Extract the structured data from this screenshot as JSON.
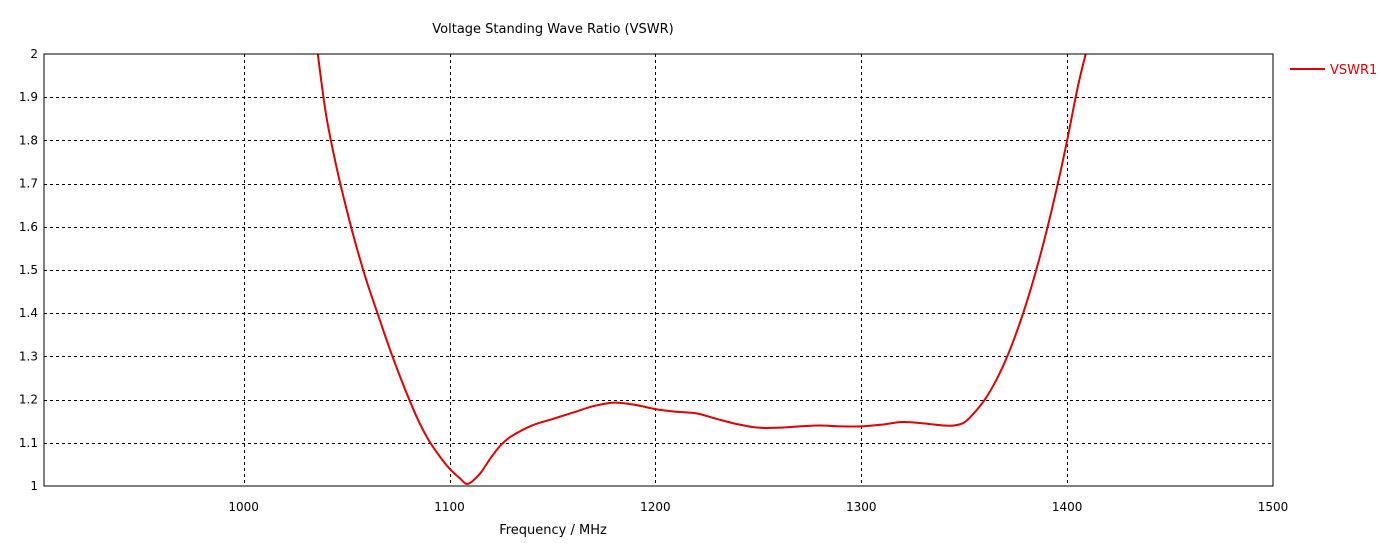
{
  "chart_data": {
    "type": "line",
    "title": "Voltage Standing Wave Ratio (VSWR)",
    "xlabel": "Frequency / MHz",
    "ylabel": "",
    "xlim": [
      903,
      1500
    ],
    "ylim": [
      1,
      2
    ],
    "x_ticks": [
      1000,
      1100,
      1200,
      1300,
      1400,
      1500
    ],
    "y_ticks": [
      1,
      1.1,
      1.2,
      1.3,
      1.4,
      1.5,
      1.6,
      1.7,
      1.8,
      1.9,
      2
    ],
    "grid": true,
    "legend_position": "top-right",
    "series": [
      {
        "name": "VSWR1",
        "color": "#dd0000",
        "x": [
          1036,
          1040,
          1045,
          1050,
          1055,
          1060,
          1065,
          1070,
          1075,
          1080,
          1085,
          1090,
          1095,
          1100,
          1105,
          1109,
          1115,
          1120,
          1125,
          1130,
          1140,
          1150,
          1160,
          1170,
          1180,
          1190,
          1200,
          1210,
          1220,
          1230,
          1240,
          1250,
          1260,
          1270,
          1280,
          1290,
          1300,
          1310,
          1320,
          1330,
          1340,
          1345,
          1350,
          1355,
          1360,
          1365,
          1370,
          1375,
          1380,
          1385,
          1390,
          1395,
          1400,
          1405,
          1409
        ],
        "y": [
          2.0,
          1.86,
          1.74,
          1.64,
          1.55,
          1.47,
          1.4,
          1.33,
          1.265,
          1.205,
          1.15,
          1.105,
          1.07,
          1.04,
          1.018,
          1.005,
          1.03,
          1.065,
          1.095,
          1.115,
          1.14,
          1.155,
          1.17,
          1.185,
          1.193,
          1.188,
          1.178,
          1.172,
          1.168,
          1.155,
          1.143,
          1.135,
          1.135,
          1.138,
          1.14,
          1.138,
          1.138,
          1.142,
          1.148,
          1.145,
          1.14,
          1.14,
          1.147,
          1.17,
          1.2,
          1.24,
          1.29,
          1.35,
          1.42,
          1.5,
          1.59,
          1.69,
          1.8,
          1.92,
          2.0
        ]
      }
    ]
  }
}
